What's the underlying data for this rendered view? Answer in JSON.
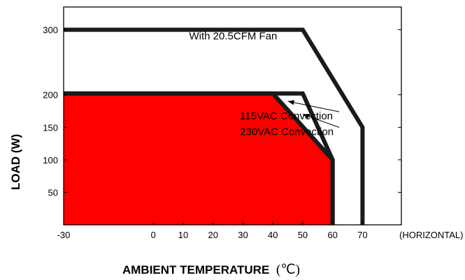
{
  "chart_data": {
    "type": "area",
    "xlabel": "AMBIENT TEMPERATURE",
    "xlabel_unit": "(℃)",
    "ylabel": "LOAD (W)",
    "x_suffix": "(HORIZONTAL)",
    "xlim": [
      -30,
      83
    ],
    "ylim": [
      0,
      335
    ],
    "x_ticks": [
      -30,
      0,
      10,
      20,
      30,
      40,
      50,
      60,
      70
    ],
    "y_ticks": [
      50,
      100,
      150,
      200,
      300
    ],
    "grid": false,
    "series": [
      {
        "name": "With 20.5CFM Fan",
        "points": [
          [
            -30,
            300
          ],
          [
            50,
            300
          ],
          [
            70,
            150
          ],
          [
            70,
            0
          ]
        ],
        "fill": false,
        "color": "#1a1a1a"
      },
      {
        "name": "230VAC Convection",
        "points": [
          [
            -30,
            202
          ],
          [
            50,
            202
          ],
          [
            60,
            100
          ],
          [
            60,
            0
          ]
        ],
        "fill": false,
        "color": "#1a1a1a"
      },
      {
        "name": "115VAC Convection",
        "points": [
          [
            -30,
            202
          ],
          [
            40,
            202
          ],
          [
            60,
            100
          ],
          [
            60,
            0
          ]
        ],
        "fill": true,
        "color": "#1a1a1a",
        "fill_color": "#ff0000"
      }
    ],
    "annotations": [
      {
        "text": "With 20.5CFM Fan",
        "x": 12,
        "y": 285
      },
      {
        "text": "115VAC Convection",
        "x": 29,
        "y": 162,
        "arrow_to": [
          45,
          190
        ]
      },
      {
        "text": "230VAC Convection",
        "x": 29,
        "y": 138,
        "arrow_to": [
          50,
          170
        ]
      }
    ]
  }
}
